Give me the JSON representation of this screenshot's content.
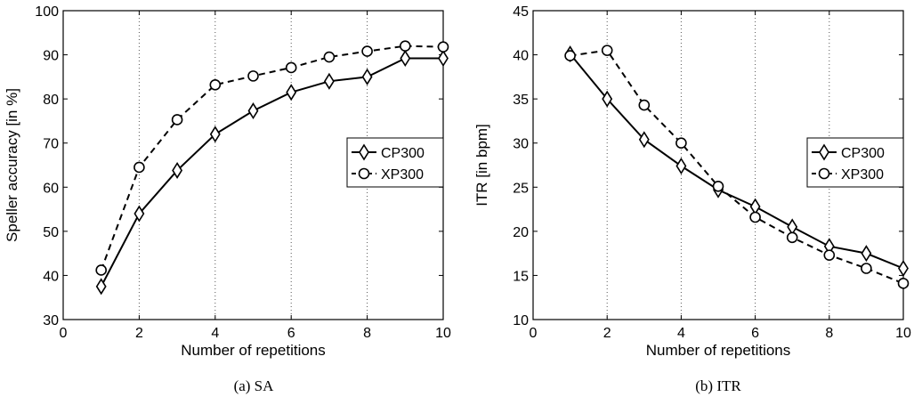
{
  "chart_data": [
    {
      "type": "line",
      "caption": "(a)  SA",
      "xlabel": "Number of repetitions",
      "ylabel": "Speller accuracy [in %]",
      "xlim": [
        0,
        10
      ],
      "ylim": [
        30,
        100
      ],
      "xticks": [
        0,
        2,
        4,
        6,
        8,
        10
      ],
      "yticks": [
        30,
        40,
        50,
        60,
        70,
        80,
        90,
        100
      ],
      "grid": "vertical dotted",
      "legend_position": "right",
      "x": [
        1,
        2,
        3,
        4,
        5,
        6,
        7,
        8,
        9,
        10
      ],
      "series": [
        {
          "name": "CP300",
          "marker": "diamond",
          "style": "solid",
          "values": [
            37.5,
            54,
            63.8,
            72,
            77.3,
            81.5,
            84,
            85,
            89.2,
            89.2
          ]
        },
        {
          "name": "XP300",
          "marker": "circle",
          "style": "dashed",
          "values": [
            41.2,
            64.5,
            75.3,
            83.2,
            85.2,
            87.1,
            89.5,
            90.8,
            92,
            91.8
          ]
        }
      ]
    },
    {
      "type": "line",
      "caption": "(b)  ITR",
      "xlabel": "Number of repetitions",
      "ylabel": "ITR [in bpm]",
      "xlim": [
        0,
        10
      ],
      "ylim": [
        10,
        45
      ],
      "xticks": [
        0,
        2,
        4,
        6,
        8,
        10
      ],
      "yticks": [
        10,
        15,
        20,
        25,
        30,
        35,
        40,
        45
      ],
      "grid": "vertical dotted",
      "legend_position": "right",
      "x": [
        1,
        2,
        3,
        4,
        5,
        6,
        7,
        8,
        9,
        10
      ],
      "series": [
        {
          "name": "CP300",
          "marker": "diamond",
          "style": "solid",
          "values": [
            40.1,
            35,
            30.4,
            27.4,
            24.7,
            22.8,
            20.5,
            18.3,
            17.5,
            15.8
          ]
        },
        {
          "name": "XP300",
          "marker": "circle",
          "style": "dashed",
          "values": [
            39.9,
            40.5,
            34.3,
            30,
            25.1,
            21.6,
            19.3,
            17.3,
            15.8,
            14.1
          ]
        }
      ]
    }
  ]
}
